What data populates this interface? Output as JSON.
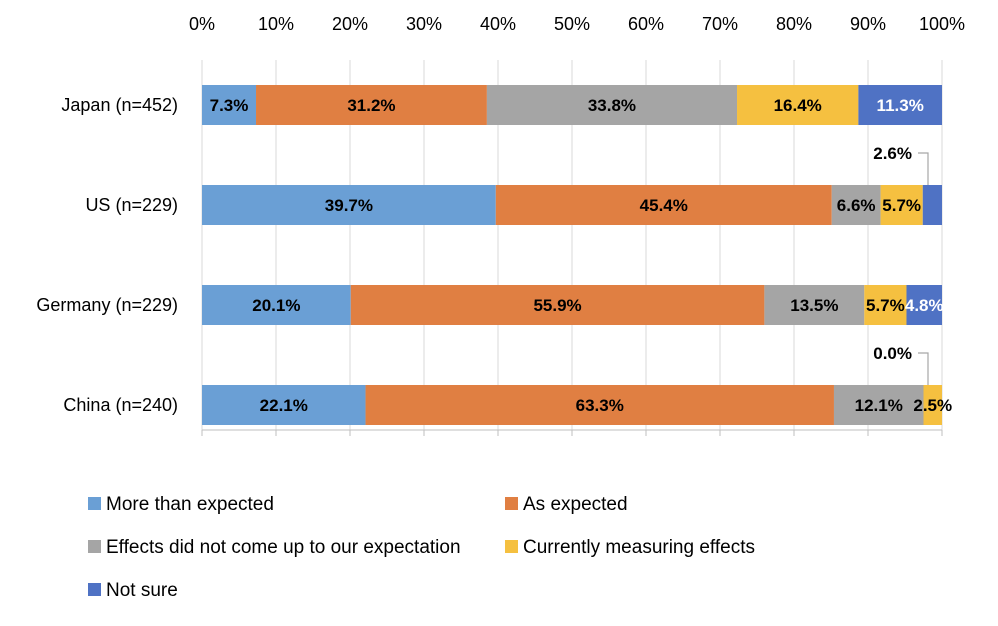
{
  "chart_data": {
    "type": "bar",
    "orientation": "horizontal-stacked-100",
    "title": "",
    "xlabel": "",
    "ylabel": "",
    "xlim": [
      0,
      100
    ],
    "grid": true,
    "legend_position": "bottom",
    "x_ticks": [
      "0%",
      "10%",
      "20%",
      "30%",
      "40%",
      "50%",
      "60%",
      "70%",
      "80%",
      "90%",
      "100%"
    ],
    "categories": [
      "Japan (n=452)",
      "US (n=229)",
      "Germany (n=229)",
      "China (n=240)"
    ],
    "series": [
      {
        "name": "More than expected",
        "color": "#6a9fd5",
        "label_color": "#000000",
        "values": [
          7.3,
          39.7,
          20.1,
          22.1
        ],
        "labels": [
          "7.3%",
          "39.7%",
          "20.1%",
          "22.1%"
        ]
      },
      {
        "name": "As expected",
        "color": "#e07f42",
        "label_color": "#000000",
        "values": [
          31.2,
          45.4,
          55.9,
          63.3
        ],
        "labels": [
          "31.2%",
          "45.4%",
          "55.9%",
          "63.3%"
        ]
      },
      {
        "name": "Effects did not come up to our expectation",
        "color": "#a5a5a5",
        "label_color": "#000000",
        "values": [
          33.8,
          6.6,
          13.5,
          12.1
        ],
        "labels": [
          "33.8%",
          "6.6%",
          "13.5%",
          "12.1%"
        ]
      },
      {
        "name": "Currently measuring effects",
        "color": "#f5c040",
        "label_color": "#000000",
        "values": [
          16.4,
          5.7,
          5.7,
          2.5
        ],
        "labels": [
          "16.4%",
          "5.7%",
          "5.7%",
          "2.5%"
        ]
      },
      {
        "name": "Not sure",
        "color": "#4f72c4",
        "label_color": "#ffffff",
        "values": [
          11.3,
          2.6,
          4.8,
          0.0
        ],
        "labels": [
          "11.3%",
          "2.6%",
          "4.8%",
          "0.0%"
        ]
      }
    ],
    "callouts": [
      {
        "series": 4,
        "category": 1,
        "text": "2.6%"
      },
      {
        "series": 4,
        "category": 3,
        "text": "0.0%"
      }
    ]
  }
}
